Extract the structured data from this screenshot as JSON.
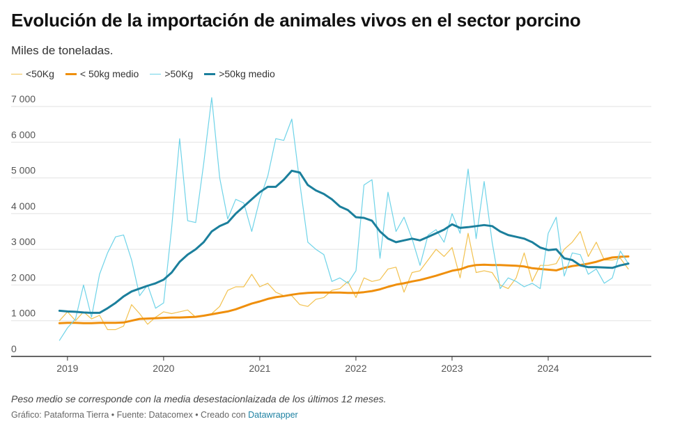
{
  "header": {
    "title": "Evolución de la importación de animales vivos en el sector porcino",
    "subtitle": "Miles de toneladas."
  },
  "footer": {
    "note": "Peso medio se corresponde con la media desestacionlaizada de los últimos 12 meses.",
    "source_prefix": "Gráfico: Pataforma Tierra • Fuente: Datacomex • Creado con ",
    "source_link": "Datawrapper"
  },
  "colors": {
    "lt50": "#f2c14e",
    "lt50_avg": "#ef8f0c",
    "gt50": "#6ed3e8",
    "gt50_avg": "#1b7f9c",
    "grid": "#e2e2e2",
    "axis": "#333333"
  },
  "chart_data": {
    "type": "line",
    "title": "Evolución de la importación de animales vivos en el sector porcino",
    "subtitle": "Miles de toneladas.",
    "xlabel": "",
    "ylabel": "",
    "x_start": 2018.917,
    "x_step": 0.08333,
    "xlim": [
      2018.82,
      2025.0
    ],
    "ylim": [
      0,
      7000
    ],
    "yticks": [
      0,
      1000,
      2000,
      3000,
      4000,
      5000,
      6000,
      7000
    ],
    "ytick_labels": [
      "0",
      "1 000",
      "2 000",
      "3 000",
      "4 000",
      "5 000",
      "6 000",
      "7 000"
    ],
    "xticks": [
      2019,
      2020,
      2021,
      2022,
      2023,
      2024
    ],
    "xtick_labels": [
      "2019",
      "2020",
      "2021",
      "2022",
      "2023",
      "2024"
    ],
    "legend_position": "top-left",
    "grid": true,
    "series": [
      {
        "name": "<50Kg",
        "key": "lt50",
        "width": 1.2,
        "values": [
          1000,
          1250,
          1000,
          1250,
          1050,
          1150,
          750,
          750,
          850,
          1450,
          1200,
          900,
          1100,
          1250,
          1200,
          1250,
          1300,
          1100,
          1150,
          1200,
          1400,
          1850,
          1950,
          1950,
          2300,
          1950,
          2050,
          1800,
          1700,
          1700,
          1450,
          1400,
          1600,
          1650,
          1850,
          1900,
          2100,
          1650,
          2200,
          2100,
          2150,
          2450,
          2500,
          1800,
          2350,
          2400,
          2700,
          3000,
          2800,
          3050,
          2200,
          3450,
          2350,
          2400,
          2350,
          2000,
          1900,
          2200,
          2900,
          2100,
          2550,
          2550,
          2600,
          3000,
          3200,
          3500,
          2800,
          3200,
          2700,
          2700,
          2750,
          2450
        ]
      },
      {
        "name": "< 50kg medio",
        "key": "lt50_avg",
        "width": 3,
        "values": [
          930,
          940,
          940,
          930,
          930,
          940,
          940,
          940,
          950,
          1000,
          1050,
          1060,
          1070,
          1080,
          1090,
          1090,
          1100,
          1110,
          1140,
          1180,
          1220,
          1260,
          1320,
          1400,
          1480,
          1540,
          1610,
          1660,
          1690,
          1730,
          1760,
          1780,
          1790,
          1790,
          1790,
          1790,
          1780,
          1780,
          1800,
          1830,
          1880,
          1950,
          2010,
          2050,
          2100,
          2140,
          2200,
          2260,
          2330,
          2400,
          2440,
          2520,
          2560,
          2570,
          2560,
          2560,
          2550,
          2540,
          2520,
          2470,
          2450,
          2430,
          2410,
          2480,
          2530,
          2560,
          2600,
          2650,
          2720,
          2770,
          2790,
          2800
        ]
      },
      {
        "name": ">50Kg",
        "key": "gt50",
        "width": 1.2,
        "values": [
          450,
          800,
          1050,
          2000,
          1100,
          2300,
          2900,
          3350,
          3400,
          2700,
          1700,
          2000,
          1350,
          1500,
          3600,
          6100,
          3800,
          3750,
          5400,
          7250,
          5000,
          3850,
          4400,
          4300,
          3500,
          4400,
          5050,
          6100,
          6050,
          6650,
          4850,
          3200,
          3000,
          2850,
          2100,
          2200,
          2050,
          2400,
          4800,
          4950,
          2750,
          4600,
          3500,
          3900,
          3300,
          2550,
          3400,
          3550,
          3200,
          4000,
          3450,
          5250,
          3300,
          4900,
          3200,
          1900,
          2200,
          2100,
          1950,
          2050,
          1900,
          3450,
          3900,
          2250,
          2900,
          2850,
          2300,
          2450,
          2050,
          2200,
          2950,
          2600
        ]
      },
      {
        "name": ">50kg medio",
        "key": "gt50_avg",
        "width": 3,
        "values": [
          1280,
          1260,
          1250,
          1230,
          1220,
          1220,
          1350,
          1500,
          1680,
          1820,
          1900,
          1980,
          2050,
          2150,
          2350,
          2650,
          2850,
          3000,
          3200,
          3500,
          3650,
          3750,
          4000,
          4200,
          4400,
          4600,
          4750,
          4750,
          4950,
          5200,
          5150,
          4800,
          4650,
          4550,
          4400,
          4200,
          4100,
          3900,
          3880,
          3800,
          3500,
          3300,
          3200,
          3250,
          3300,
          3250,
          3350,
          3450,
          3550,
          3700,
          3600,
          3620,
          3650,
          3680,
          3650,
          3500,
          3400,
          3350,
          3300,
          3200,
          3050,
          2980,
          3000,
          2750,
          2700,
          2550,
          2500,
          2500,
          2490,
          2480,
          2550,
          2600
        ]
      }
    ]
  }
}
